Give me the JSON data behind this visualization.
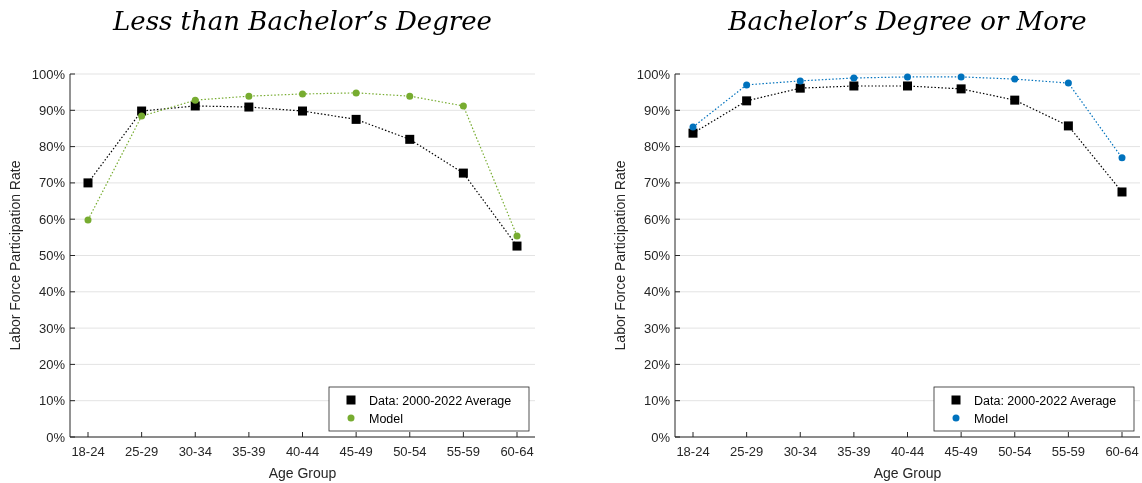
{
  "chart_data": [
    {
      "type": "line",
      "title": "Less than Bachelor’s Degree",
      "xlabel": "Age Group",
      "ylabel": "Labor Force Participation Rate",
      "categories": [
        "18-24",
        "25-29",
        "30-34",
        "35-39",
        "40-44",
        "45-49",
        "50-54",
        "55-59",
        "60-64"
      ],
      "ylim": [
        0,
        100
      ],
      "yticks": [
        {
          "value": 0,
          "label": "0%"
        },
        {
          "value": 10,
          "label": "10%"
        },
        {
          "value": 20,
          "label": "20%"
        },
        {
          "value": 30,
          "label": "30%"
        },
        {
          "value": 40,
          "label": "40%"
        },
        {
          "value": 50,
          "label": "50%"
        },
        {
          "value": 60,
          "label": "60%"
        },
        {
          "value": 70,
          "label": "70%"
        },
        {
          "value": 80,
          "label": "80%"
        },
        {
          "value": 90,
          "label": "90%"
        },
        {
          "value": 100,
          "label": "100%"
        }
      ],
      "grid": "y",
      "legend": "bottom right",
      "line_style": "dotted",
      "series": [
        {
          "name": "Data: 2000-2022 Average",
          "color": "#000000",
          "marker": "square",
          "values": [
            70,
            89.8,
            91.2,
            90.9,
            89.8,
            87.5,
            82,
            72.7,
            52.6
          ]
        },
        {
          "name": "Model",
          "color": "#77ac30",
          "marker": "circle",
          "values": [
            59.8,
            88.4,
            92.8,
            93.9,
            94.5,
            94.8,
            93.9,
            91.2,
            55.4
          ]
        }
      ]
    },
    {
      "type": "line",
      "title": "Bachelor’s Degree or More",
      "xlabel": "Age Group",
      "ylabel": "Labor Force Participation Rate",
      "categories": [
        "18-24",
        "25-29",
        "30-34",
        "35-39",
        "40-44",
        "45-49",
        "50-54",
        "55-59",
        "60-64"
      ],
      "ylim": [
        0,
        100
      ],
      "yticks": [
        {
          "value": 0,
          "label": "0%"
        },
        {
          "value": 10,
          "label": "10%"
        },
        {
          "value": 20,
          "label": "20%"
        },
        {
          "value": 30,
          "label": "30%"
        },
        {
          "value": 40,
          "label": "40%"
        },
        {
          "value": 50,
          "label": "50%"
        },
        {
          "value": 60,
          "label": "60%"
        },
        {
          "value": 70,
          "label": "70%"
        },
        {
          "value": 80,
          "label": "80%"
        },
        {
          "value": 90,
          "label": "90%"
        },
        {
          "value": 100,
          "label": "100%"
        }
      ],
      "grid": "y",
      "legend": "bottom right",
      "line_style": "dotted",
      "series": [
        {
          "name": "Data: 2000-2022 Average",
          "color": "#000000",
          "marker": "square",
          "values": [
            83.7,
            92.6,
            96.1,
            96.7,
            96.7,
            95.9,
            92.8,
            85.7,
            67.5
          ]
        },
        {
          "name": "Model",
          "color": "#0072bd",
          "marker": "circle",
          "values": [
            85.4,
            97,
            98.1,
            98.9,
            99.2,
            99.2,
            98.6,
            97.5,
            76.9
          ]
        }
      ]
    }
  ]
}
